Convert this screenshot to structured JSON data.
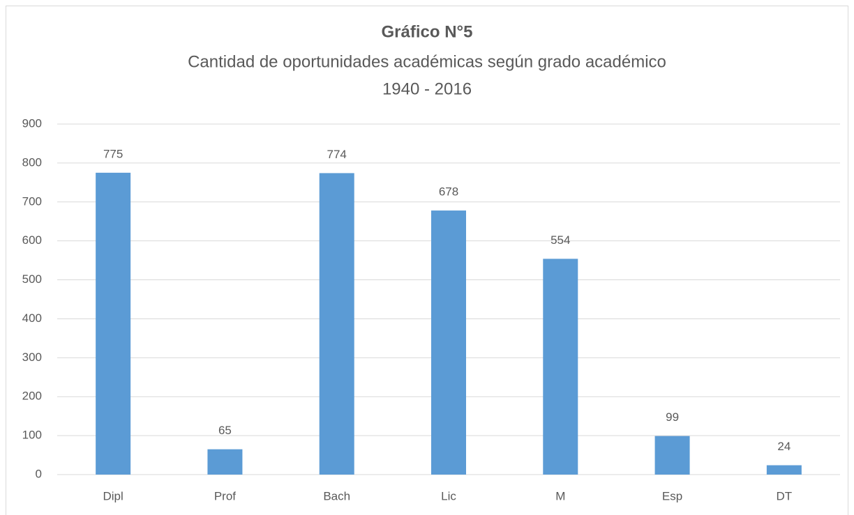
{
  "chart_data": {
    "type": "bar",
    "title": "Gráfico N°5",
    "subtitle": [
      "Cantidad de oportunidades académicas según grado académico",
      "1940 - 2016"
    ],
    "categories": [
      "Dipl",
      "Prof",
      "Bach",
      "Lic",
      "M",
      "Esp",
      "DT"
    ],
    "values": [
      775,
      65,
      774,
      678,
      554,
      99,
      24
    ],
    "color": "#5b9bd5",
    "ylim": [
      0,
      900
    ],
    "yticks": [
      0,
      100,
      200,
      300,
      400,
      500,
      600,
      700,
      800,
      900
    ],
    "grid": true
  }
}
